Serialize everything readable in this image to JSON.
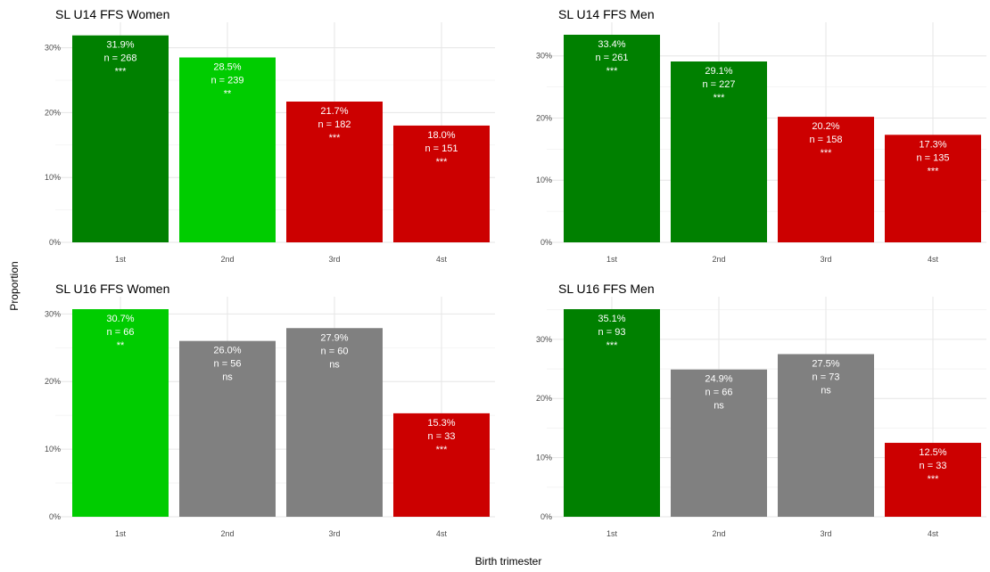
{
  "figure": {
    "xlabel": "Birth trimester",
    "ylabel": "Proportion"
  },
  "colors": {
    "dark_green": "#008000",
    "light_green": "#00cc00",
    "red": "#cc0000",
    "grey": "#808080"
  },
  "chart_data": [
    {
      "type": "bar",
      "title": "SL U14 FFS Women",
      "categories": [
        "1st",
        "2nd",
        "3rd",
        "4st"
      ],
      "values": [
        31.9,
        28.5,
        21.7,
        18.0
      ],
      "value_labels": [
        "31.9%",
        "28.5%",
        "21.7%",
        "18.0%"
      ],
      "n_labels": [
        "n = 268",
        "n = 239",
        "n = 182",
        "n = 151"
      ],
      "significance": [
        "***",
        "**",
        "***",
        "***"
      ],
      "bar_colors": [
        "dark_green",
        "light_green",
        "red",
        "red"
      ],
      "yticks": [
        0,
        10,
        20,
        30
      ],
      "ytick_labels": [
        "0%",
        "10%",
        "20%",
        "30%"
      ],
      "ylim": [
        0,
        32
      ],
      "grid": true
    },
    {
      "type": "bar",
      "title": "SL U14 FFS Men",
      "categories": [
        "1st",
        "2nd",
        "3rd",
        "4st"
      ],
      "values": [
        33.4,
        29.1,
        20.2,
        17.3
      ],
      "value_labels": [
        "33.4%",
        "29.1%",
        "20.2%",
        "17.3%"
      ],
      "n_labels": [
        "n = 261",
        "n = 227",
        "n = 158",
        "n = 135"
      ],
      "significance": [
        "***",
        "***",
        "***",
        "***"
      ],
      "bar_colors": [
        "dark_green",
        "dark_green",
        "red",
        "red"
      ],
      "yticks": [
        0,
        10,
        20,
        30
      ],
      "ytick_labels": [
        "0%",
        "10%",
        "20%",
        "30%"
      ],
      "ylim": [
        0,
        33.4
      ],
      "grid": true
    },
    {
      "type": "bar",
      "title": "SL U16 FFS Women",
      "categories": [
        "1st",
        "2nd",
        "3rd",
        "4st"
      ],
      "values": [
        30.7,
        26.0,
        27.9,
        15.3
      ],
      "value_labels": [
        "30.7%",
        "26.0%",
        "27.9%",
        "15.3%"
      ],
      "n_labels": [
        "n = 66",
        "n = 56",
        "n = 60",
        "n = 33"
      ],
      "significance": [
        "**",
        "ns",
        "ns",
        "***"
      ],
      "bar_colors": [
        "light_green",
        "grey",
        "grey",
        "red"
      ],
      "yticks": [
        0,
        10,
        20,
        30
      ],
      "ytick_labels": [
        "0%",
        "10%",
        "20%",
        "30%"
      ],
      "ylim": [
        0,
        30.7
      ],
      "grid": true
    },
    {
      "type": "bar",
      "title": "SL U16 FFS Men",
      "categories": [
        "1st",
        "2nd",
        "3rd",
        "4st"
      ],
      "values": [
        35.1,
        24.9,
        27.5,
        12.5
      ],
      "value_labels": [
        "35.1%",
        "24.9%",
        "27.5%",
        "12.5%"
      ],
      "n_labels": [
        "n = 93",
        "n = 66",
        "n = 73",
        "n = 33"
      ],
      "significance": [
        "***",
        "ns",
        "ns",
        "***"
      ],
      "bar_colors": [
        "dark_green",
        "grey",
        "grey",
        "red"
      ],
      "yticks": [
        0,
        10,
        20,
        30
      ],
      "ytick_labels": [
        "0%",
        "10%",
        "20%",
        "30%"
      ],
      "ylim": [
        0,
        35.1
      ],
      "grid": true
    }
  ]
}
